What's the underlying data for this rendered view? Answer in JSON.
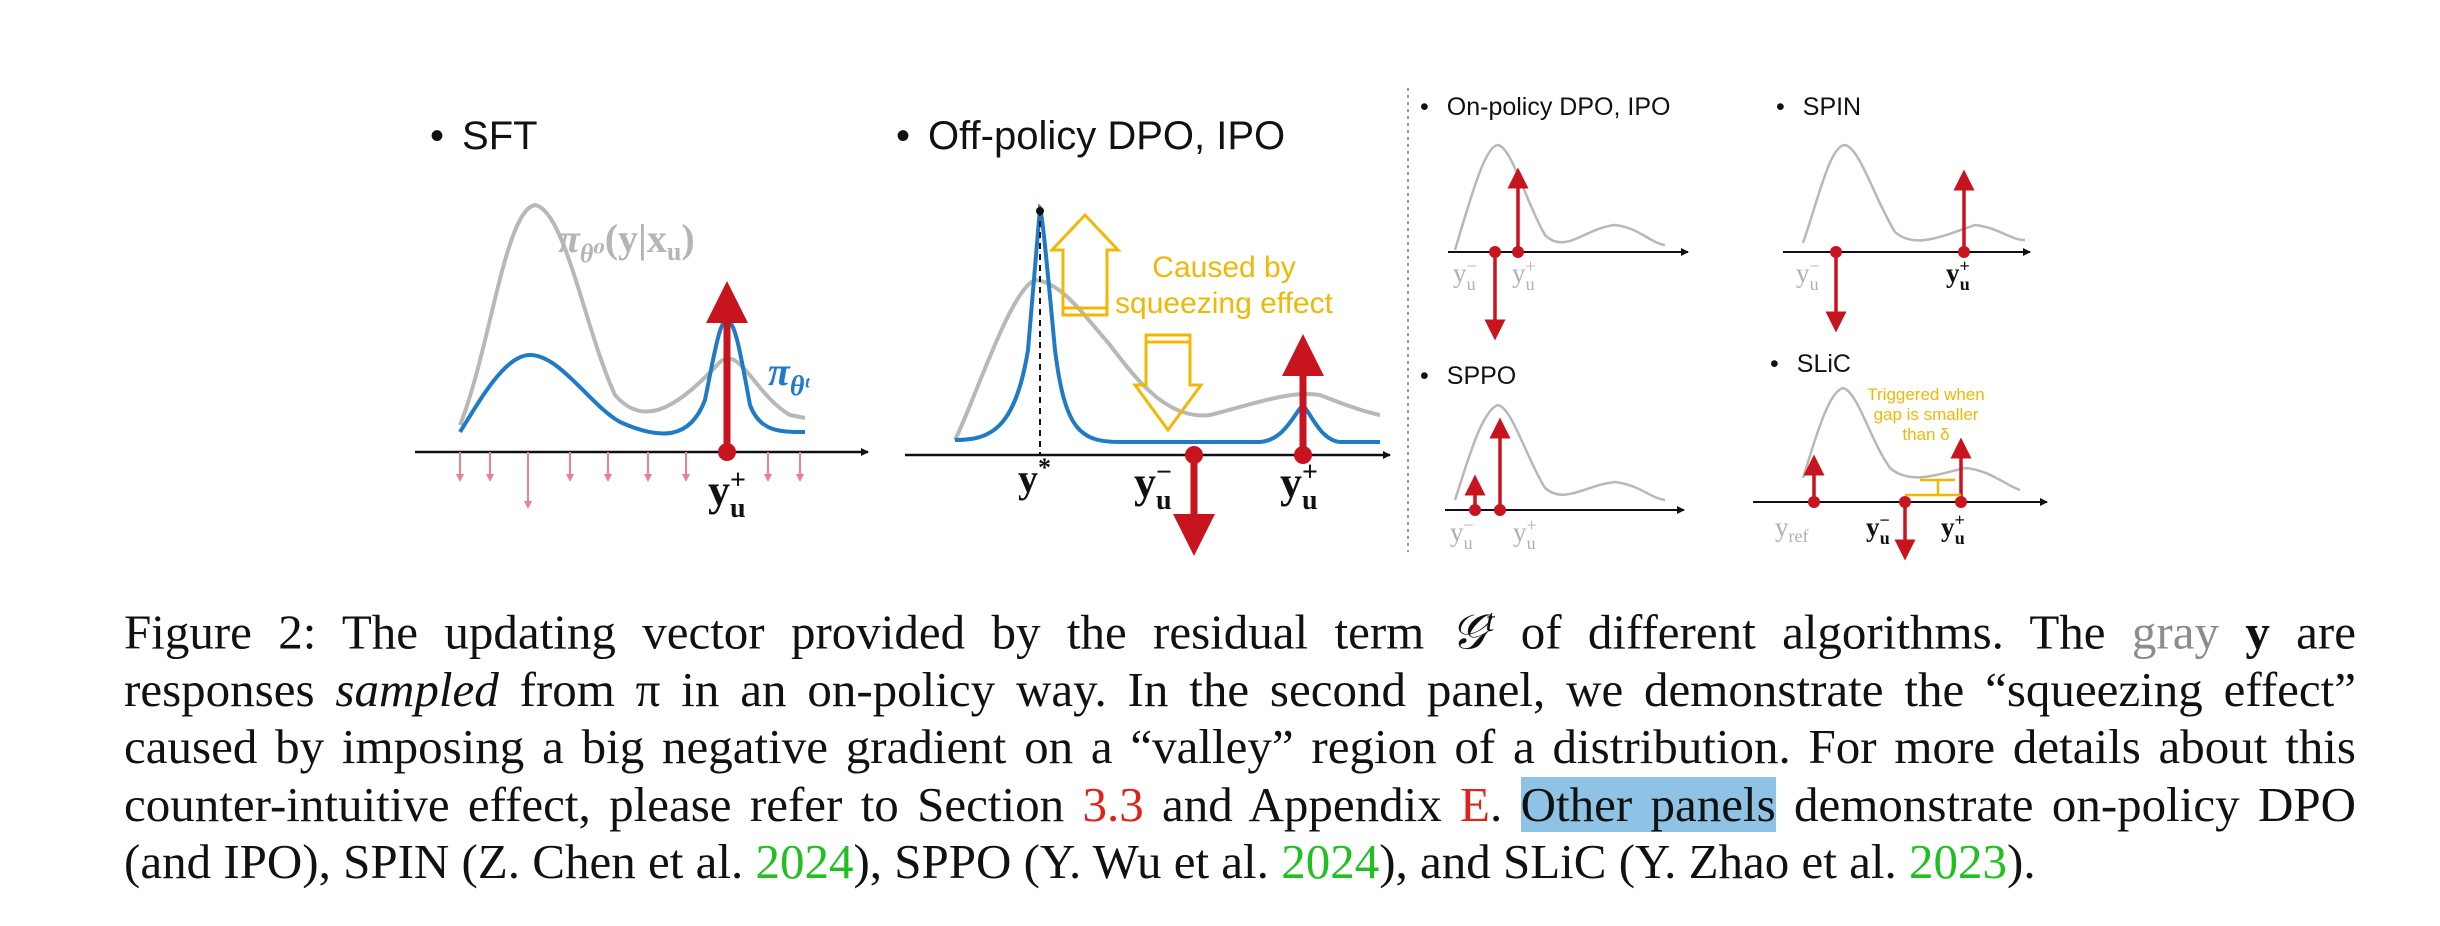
{
  "colors": {
    "red": "#c8141e",
    "blue": "#1f7bc6",
    "gray": "#b8b8b8",
    "yellow": "#f2b705",
    "pink": "#ec8090",
    "link_red": "#e0221b",
    "link_green": "#21c021",
    "highlight": "#8ec3e6"
  },
  "panels": {
    "sft": {
      "title": "SFT",
      "label_pi0": "π",
      "label_pi0_sub": "θ⁰",
      "label_pi0_arg": "(y|x",
      "label_pi0_argsub": "u",
      "label_pi0_close": ")",
      "label_pit": "π",
      "label_pit_sub": "θᵗ",
      "y_main": "y",
      "y_main_sup": "+",
      "y_main_sub": "u"
    },
    "offpolicy": {
      "title": "Off-policy DPO, IPO",
      "ystar": "y",
      "ystar_sup": "*",
      "yminus": "y",
      "yminus_sup": "−",
      "yminus_sub": "u",
      "yplus": "y",
      "yplus_sup": "+",
      "yplus_sub": "u",
      "annotation_line1": "Caused by",
      "annotation_line2": "squeezing effect"
    },
    "onpolicy": {
      "title": "On-policy DPO, IPO",
      "y1": "y",
      "y1_sup": "−",
      "y1_sub": "u",
      "y2": "y",
      "y2_sup": "+",
      "y2_sub": "u"
    },
    "spin": {
      "title": "SPIN",
      "y1": "y",
      "y1_sup": "−",
      "y1_sub": "u",
      "y2": "y",
      "y2_sup": "+",
      "y2_sub": "u"
    },
    "sppo": {
      "title": "SPPO",
      "y1": "y",
      "y1_sup": "−",
      "y1_sub": "u",
      "y2": "y",
      "y2_sup": "+",
      "y2_sub": "u"
    },
    "slic": {
      "title": "SLiC",
      "yref": "y",
      "yref_sub": "ref",
      "y1": "y",
      "y1_sup": "−",
      "y1_sub": "u",
      "y2": "y",
      "y2_sup": "+",
      "y2_sub": "u",
      "annotation_line1": "Triggered when",
      "annotation_line2": "gap is smaller",
      "annotation_line3": "than δ"
    }
  },
  "caption": {
    "l1_a": "Figure 2: The updating vector provided by the residual term ",
    "l1_G": "𝒢",
    "l1_t": "t",
    "l1_b": " of different algorithms. The ",
    "l1_gray": "gray",
    "l1_y": "y",
    "l1_c": " are",
    "l2_a": "responses ",
    "l2_it": "sampled",
    "l2_b": " from π in an on-policy way. In the second panel, we demonstrate the “squeezing effect”",
    "l3": "caused by imposing a big negative gradient on a “valley” region of a distribution. For more details about this",
    "l4_a": "counter-intuitive effect, please refer to Section ",
    "l4_ref1": "3.3",
    "l4_b": " and Appendix ",
    "l4_ref2": "E",
    "l4_c": ". ",
    "l4_hl": "Other panels",
    "l4_d": " demonstrate on-policy DPO",
    "l5_a": "(and IPO), SPIN (Z. Chen et al. ",
    "l5_y1": "2024",
    "l5_b": "), SPPO (Y. Wu et al. ",
    "l5_y2": "2024",
    "l5_c": "), and SLiC (Y. Zhao et al. ",
    "l5_y3": "2023",
    "l5_d": ")."
  }
}
